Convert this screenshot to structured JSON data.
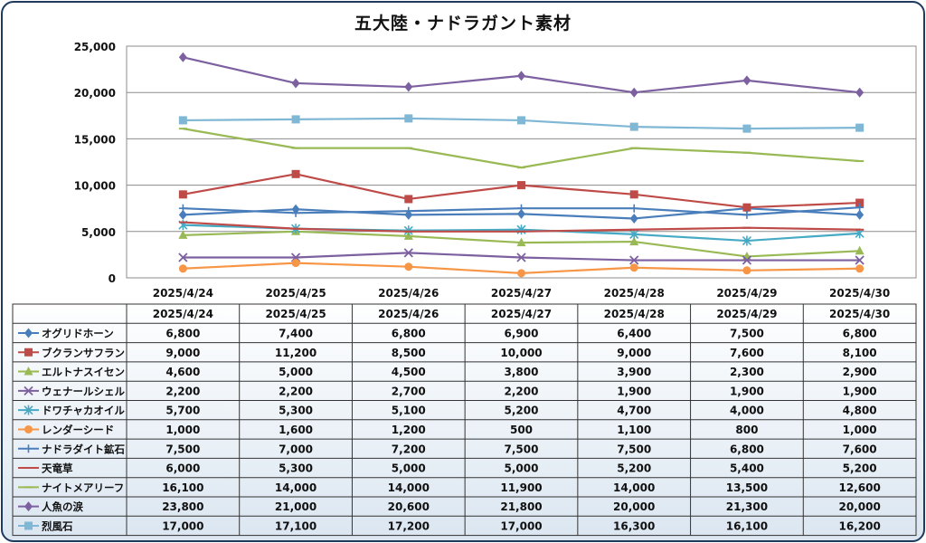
{
  "title": "五大陸・ナドラガント素材",
  "chart_data": {
    "type": "line",
    "title": "五大陸・ナドラガント素材",
    "categories": [
      "2025/4/24",
      "2025/4/25",
      "2025/4/26",
      "2025/4/27",
      "2025/4/28",
      "2025/4/29",
      "2025/4/30"
    ],
    "ylim": [
      0,
      25000
    ],
    "yticks": [
      "0",
      "5,000",
      "10,000",
      "15,000",
      "20,000",
      "25,000"
    ],
    "grid": true,
    "legend": "data-table-bottom",
    "series": [
      {
        "name": "オグリドホーン",
        "color": "#4a7ebb",
        "marker": "diamond",
        "values": [
          6800,
          7400,
          6800,
          6900,
          6400,
          7500,
          6800
        ],
        "labels": [
          "6,800",
          "7,400",
          "6,800",
          "6,900",
          "6,400",
          "7,500",
          "6,800"
        ]
      },
      {
        "name": "ブクランサフラン",
        "color": "#be4b48",
        "marker": "square",
        "values": [
          9000,
          11200,
          8500,
          10000,
          9000,
          7600,
          8100
        ],
        "labels": [
          "9,000",
          "11,200",
          "8,500",
          "10,000",
          "9,000",
          "7,600",
          "8,100"
        ]
      },
      {
        "name": "エルトナスイセン",
        "color": "#98b954",
        "marker": "triangle",
        "values": [
          4600,
          5000,
          4500,
          3800,
          3900,
          2300,
          2900
        ],
        "labels": [
          "4,600",
          "5,000",
          "4,500",
          "3,800",
          "3,900",
          "2,300",
          "2,900"
        ]
      },
      {
        "name": "ウェナールシェル",
        "color": "#7d60a0",
        "marker": "x",
        "values": [
          2200,
          2200,
          2700,
          2200,
          1900,
          1900,
          1900
        ],
        "labels": [
          "2,200",
          "2,200",
          "2,700",
          "2,200",
          "1,900",
          "1,900",
          "1,900"
        ]
      },
      {
        "name": "ドワチャカオイル",
        "color": "#46aac5",
        "marker": "star",
        "values": [
          5700,
          5300,
          5100,
          5200,
          4700,
          4000,
          4800
        ],
        "labels": [
          "5,700",
          "5,300",
          "5,100",
          "5,200",
          "4,700",
          "4,000",
          "4,800"
        ]
      },
      {
        "name": "レンダーシード",
        "color": "#f79646",
        "marker": "circle",
        "values": [
          1000,
          1600,
          1200,
          500,
          1100,
          800,
          1000
        ],
        "labels": [
          "1,000",
          "1,600",
          "1,200",
          "500",
          "1,100",
          "800",
          "1,000"
        ]
      },
      {
        "name": "ナドラダイト鉱石",
        "color": "#4a7ebb",
        "marker": "plus",
        "values": [
          7500,
          7000,
          7200,
          7500,
          7500,
          6800,
          7600
        ],
        "labels": [
          "7,500",
          "7,000",
          "7,200",
          "7,500",
          "7,500",
          "6,800",
          "7,600"
        ]
      },
      {
        "name": "天竜草",
        "color": "#be4b48",
        "marker": "dash",
        "values": [
          6000,
          5300,
          5000,
          5000,
          5200,
          5400,
          5200
        ],
        "labels": [
          "6,000",
          "5,300",
          "5,000",
          "5,000",
          "5,200",
          "5,400",
          "5,200"
        ]
      },
      {
        "name": "ナイトメアリーフ",
        "color": "#98b954",
        "marker": "dash",
        "values": [
          16100,
          14000,
          14000,
          11900,
          14000,
          13500,
          12600
        ],
        "labels": [
          "16,100",
          "14,000",
          "14,000",
          "11,900",
          "14,000",
          "13,500",
          "12,600"
        ]
      },
      {
        "name": "人魚の涙",
        "color": "#7d60a0",
        "marker": "diamond",
        "values": [
          23800,
          21000,
          20600,
          21800,
          20000,
          21300,
          20000
        ],
        "labels": [
          "23,800",
          "21,000",
          "20,600",
          "21,800",
          "20,000",
          "21,300",
          "20,000"
        ]
      },
      {
        "name": "烈風石",
        "color": "#7fb7d4",
        "marker": "square",
        "values": [
          17000,
          17100,
          17200,
          17000,
          16300,
          16100,
          16200
        ],
        "labels": [
          "17,000",
          "17,100",
          "17,200",
          "17,000",
          "16,300",
          "16,100",
          "16,200"
        ]
      }
    ]
  }
}
